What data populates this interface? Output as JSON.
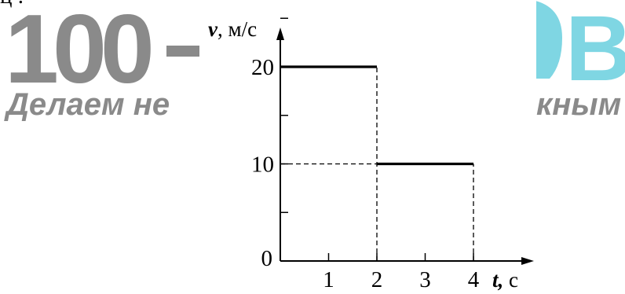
{
  "page": {
    "top_fragment": "ц ."
  },
  "watermark": {
    "brand_digits": "100",
    "brand_tail": "B",
    "tagline_left": "Делаем не",
    "tagline_right": "кным",
    "colors": {
      "gray": "#8a8a8a",
      "cyan": "#7fd6e3"
    }
  },
  "chart_data": {
    "type": "line",
    "title": "",
    "ylabel_var": "v",
    "ylabel_unit": ", м/с",
    "xlabel_var": "t,",
    "xlabel_unit": " с",
    "origin_label": "0",
    "xlim": [
      0,
      4.6
    ],
    "ylim": [
      0,
      27
    ],
    "x_ticks": [
      {
        "value": 1,
        "label": "1"
      },
      {
        "value": 2,
        "label": "2"
      },
      {
        "value": 3,
        "label": "3"
      },
      {
        "value": 4,
        "label": "4"
      }
    ],
    "y_ticks": [
      {
        "value": 5,
        "label": ""
      },
      {
        "value": 10,
        "label": "10"
      },
      {
        "value": 15,
        "label": ""
      },
      {
        "value": 20,
        "label": "20"
      },
      {
        "value": 25,
        "label": ""
      }
    ],
    "series": [
      {
        "x": [
          0,
          2,
          2,
          4
        ],
        "y": [
          20,
          20,
          10,
          10
        ],
        "segments": [
          {
            "x_start": 0,
            "x_end": 2,
            "value": 20
          },
          {
            "x_start": 2,
            "x_end": 4,
            "value": 10
          }
        ]
      }
    ],
    "guide_lines": [
      {
        "orientation": "vertical",
        "at": 2,
        "from": 0,
        "to": 20,
        "style": "dashed"
      },
      {
        "orientation": "vertical",
        "at": 4,
        "from": 0,
        "to": 10,
        "style": "dashed"
      },
      {
        "orientation": "horizontal",
        "at": 10,
        "from": 0,
        "to": 2,
        "style": "dashed"
      }
    ],
    "grid": false,
    "legend": "none"
  }
}
